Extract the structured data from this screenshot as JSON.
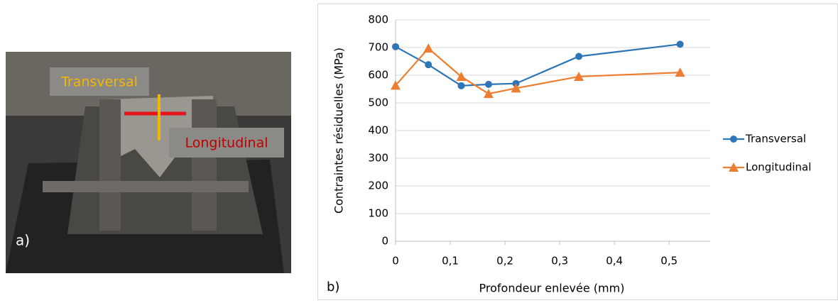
{
  "photo": {
    "panel_label": "a)",
    "labels": [
      "Transversal",
      "Longitudinal"
    ]
  },
  "chart_data": {
    "type": "line",
    "panel_label": "b)",
    "x_label": "Profondeur enlevée (mm)",
    "y_label": "Contraintes résiduelles (MPa)",
    "x": [
      0,
      0.06,
      0.12,
      0.17,
      0.22,
      0.335,
      0.52
    ],
    "series": [
      {
        "name": "Transversal",
        "color": "#2e75b6",
        "marker": "circle",
        "values": [
          703,
          638,
          562,
          567,
          570,
          668,
          712
        ]
      },
      {
        "name": "Longitudinal",
        "color": "#ed7d31",
        "marker": "triangle",
        "values": [
          563,
          697,
          595,
          533,
          553,
          595,
          610
        ]
      }
    ],
    "xlim": [
      0,
      0.575
    ],
    "xticks": [
      0,
      {
        "value": 0.1,
        "label": "0,1"
      },
      {
        "value": 0.2,
        "label": "0,2"
      },
      {
        "value": 0.3,
        "label": "0,3"
      },
      {
        "value": 0.4,
        "label": "0,4"
      },
      {
        "value": 0.5,
        "label": "0,5"
      }
    ],
    "ylim": [
      0,
      800
    ],
    "yticks": [
      0,
      100,
      200,
      300,
      400,
      500,
      600,
      700,
      800
    ],
    "grid": true,
    "legend": "right"
  }
}
